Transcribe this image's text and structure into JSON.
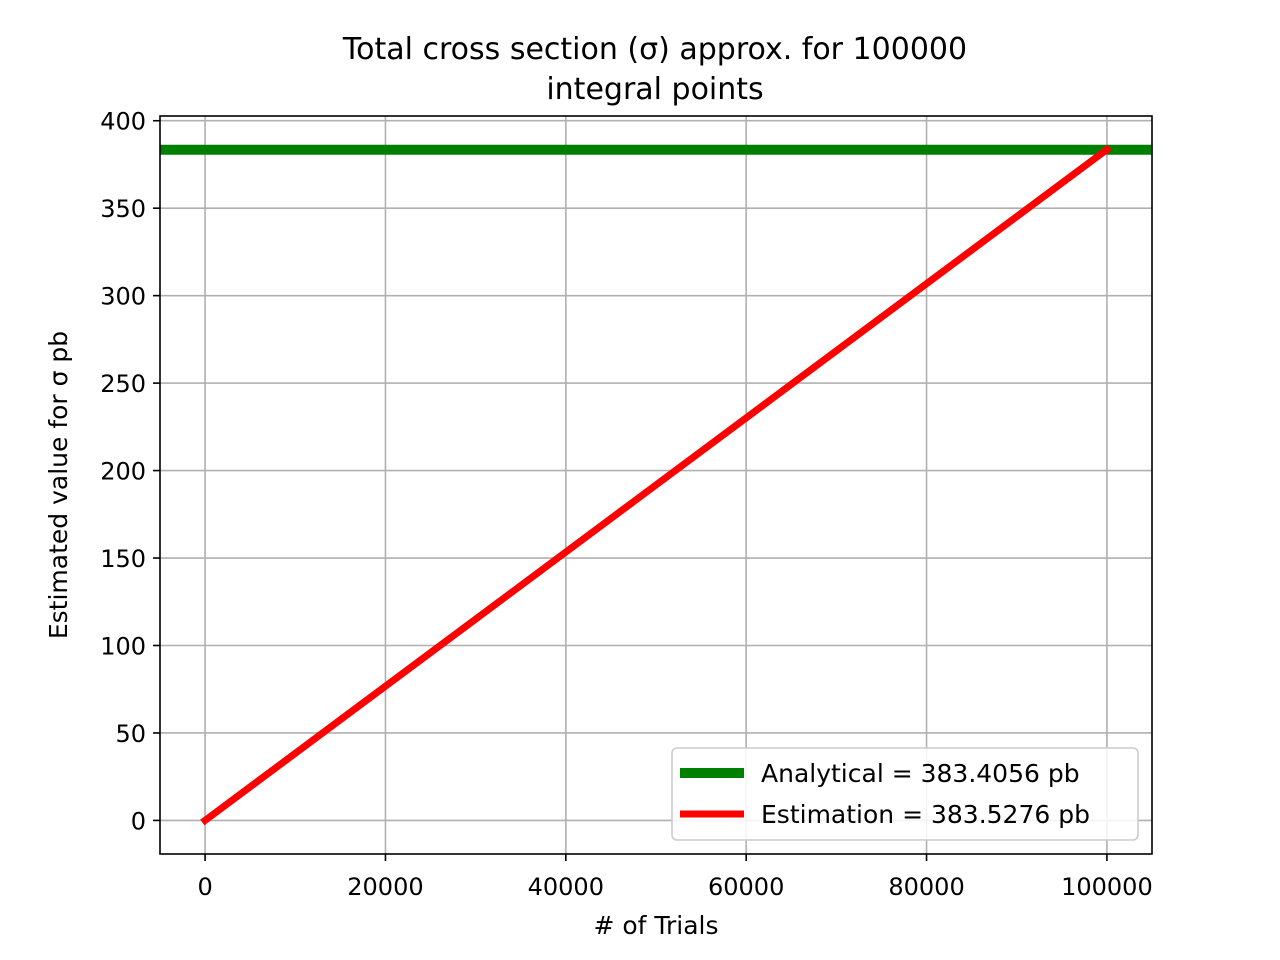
{
  "chart_data": {
    "type": "line",
    "title_lines": [
      "Total cross section (σ) approx. for 100000",
      "integral points"
    ],
    "xlabel": "# of Trials",
    "ylabel": "Estimated value for σ pb",
    "xlim": [
      -5000,
      105000
    ],
    "ylim": [
      -19.2,
      402.7
    ],
    "x_ticks": [
      0,
      20000,
      40000,
      60000,
      80000,
      100000
    ],
    "y_ticks": [
      0,
      50,
      100,
      150,
      200,
      250,
      300,
      350,
      400
    ],
    "grid": true,
    "legend_position": "lower-right",
    "series": [
      {
        "name": "Analytical = 383.4056 pb",
        "kind": "hline",
        "y": 383.4056,
        "color": "#008000"
      },
      {
        "name": "Estimation = 383.5276 pb",
        "kind": "line",
        "x": [
          0,
          100000
        ],
        "y": [
          0,
          383.5276
        ],
        "color": "#ff0000"
      }
    ]
  }
}
